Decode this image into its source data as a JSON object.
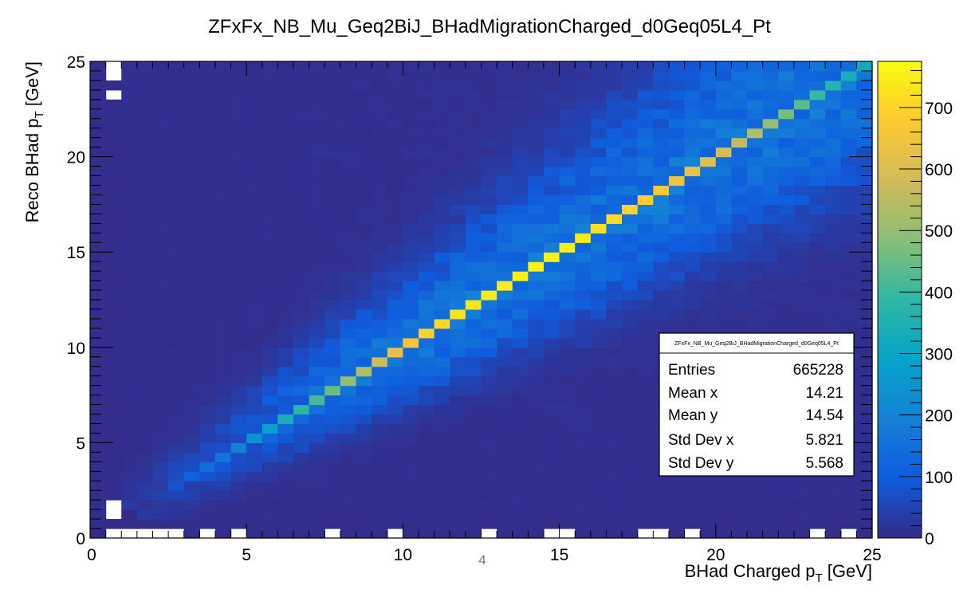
{
  "page": {
    "page_number": "4"
  },
  "chart_data": {
    "type": "heatmap",
    "title": "ZFxFx_NB_Mu_Geq2BiJ_BHadMigrationCharged_d0Geq05L4_Pt",
    "xlabel": {
      "main": "BHad Charged p",
      "sub": "T",
      "unit": " [GeV]"
    },
    "ylabel": {
      "main": "Reco BHad p",
      "sub": "T",
      "unit": " [GeV]"
    },
    "xlim": [
      0,
      25
    ],
    "ylim": [
      0,
      25
    ],
    "x_ticks": [
      "0",
      "5",
      "10",
      "15",
      "20",
      "25"
    ],
    "y_ticks": [
      "0",
      "5",
      "10",
      "15",
      "20",
      "25"
    ],
    "bins": {
      "nx": 50,
      "ny": 50
    },
    "z_range": [
      0,
      775
    ],
    "z_ticks": [
      "0",
      "100",
      "200",
      "300",
      "400",
      "500",
      "600",
      "700"
    ],
    "diagonal_peak": [
      [
        1.5,
        2
      ],
      [
        2.5,
        60
      ],
      [
        3.5,
        130
      ],
      [
        4.5,
        170
      ],
      [
        5.5,
        260
      ],
      [
        6.5,
        360
      ],
      [
        7.5,
        430
      ],
      [
        8.5,
        520
      ],
      [
        9.5,
        600
      ],
      [
        10.5,
        680
      ],
      [
        11.5,
        720
      ],
      [
        12.5,
        740
      ],
      [
        13.5,
        750
      ],
      [
        14.5,
        760
      ],
      [
        15.5,
        750
      ],
      [
        16.5,
        720
      ],
      [
        17.5,
        690
      ],
      [
        18.5,
        660
      ],
      [
        19.5,
        620
      ],
      [
        20.5,
        580
      ],
      [
        21.5,
        520
      ],
      [
        22.5,
        450
      ],
      [
        23.5,
        380
      ],
      [
        24.5,
        320
      ]
    ],
    "off_diagonal_scale": 140,
    "empty_cells": [
      [
        0.5,
        0.25
      ],
      [
        1.0,
        0.25
      ],
      [
        1.5,
        0.25
      ],
      [
        2.0,
        0.25
      ],
      [
        2.5,
        0.25
      ],
      [
        3.5,
        0.25
      ],
      [
        4.5,
        0.25
      ],
      [
        7.5,
        0.25
      ],
      [
        9.5,
        0.25
      ],
      [
        12.5,
        0.25
      ],
      [
        14.5,
        0.25
      ],
      [
        15.0,
        0.25
      ],
      [
        17.5,
        0.25
      ],
      [
        18.0,
        0.25
      ],
      [
        19.0,
        0.25
      ],
      [
        23.0,
        0.25
      ],
      [
        24.0,
        0.25
      ],
      [
        0.75,
        1.25
      ],
      [
        0.75,
        1.75
      ],
      [
        0.75,
        23.25
      ],
      [
        0.75,
        24.25
      ],
      [
        0.75,
        24.75
      ]
    ],
    "grid": false,
    "legend_placement": "none",
    "palette": "kBird",
    "stats_box": {
      "title": "ZFxFx_NB_Mu_Geq2BiJ_BHadMigrationCharged_d0Geq05L4_Pt",
      "entries_label": "Entries",
      "entries": "665228",
      "mean_x_label": "Mean x",
      "mean_x": "14.21",
      "mean_y_label": "Mean y",
      "mean_y": "14.54",
      "std_x_label": "Std Dev x",
      "std_x": "5.821",
      "std_y_label": "Std Dev y",
      "std_y": "5.568",
      "placement": "right"
    }
  }
}
